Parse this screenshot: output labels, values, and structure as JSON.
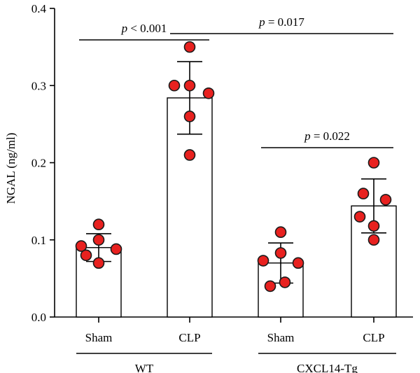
{
  "chart_data": {
    "type": "bar",
    "ylabel": "NGAL (ng/ml)",
    "ylim": [
      0.0,
      0.4
    ],
    "yticks": [
      "0.0",
      "0.1",
      "0.2",
      "0.3",
      "0.4"
    ],
    "ytick_values": [
      0.0,
      0.1,
      0.2,
      0.3,
      0.4
    ],
    "point_color": "#e8211f",
    "bars": [
      {
        "category": "Sham",
        "group": "WT",
        "mean": 0.09,
        "sd": 0.018,
        "points": [
          0.12,
          0.1,
          0.092,
          0.088,
          0.08,
          0.07
        ]
      },
      {
        "category": "CLP",
        "group": "WT",
        "mean": 0.284,
        "sd": 0.047,
        "points": [
          0.35,
          0.3,
          0.3,
          0.29,
          0.26,
          0.21
        ]
      },
      {
        "category": "Sham",
        "group": "CXCL14-Tg",
        "mean": 0.07,
        "sd": 0.026,
        "points": [
          0.11,
          0.083,
          0.073,
          0.07,
          0.045,
          0.04
        ]
      },
      {
        "category": "CLP",
        "group": "CXCL14-Tg",
        "mean": 0.144,
        "sd": 0.035,
        "points": [
          0.2,
          0.16,
          0.152,
          0.13,
          0.118,
          0.1
        ]
      }
    ],
    "groups": [
      "WT",
      "CXCL14-Tg"
    ],
    "annotations": [
      {
        "p_prefix": "p",
        "text": " < 0.001",
        "from_bar": 0,
        "to_bar": 1
      },
      {
        "p_prefix": "p",
        "text": " = 0.017",
        "from_bar": 1,
        "to_bar": 3
      },
      {
        "p_prefix": "p",
        "text": " = 0.022",
        "from_bar": 2,
        "to_bar": 3
      }
    ]
  }
}
